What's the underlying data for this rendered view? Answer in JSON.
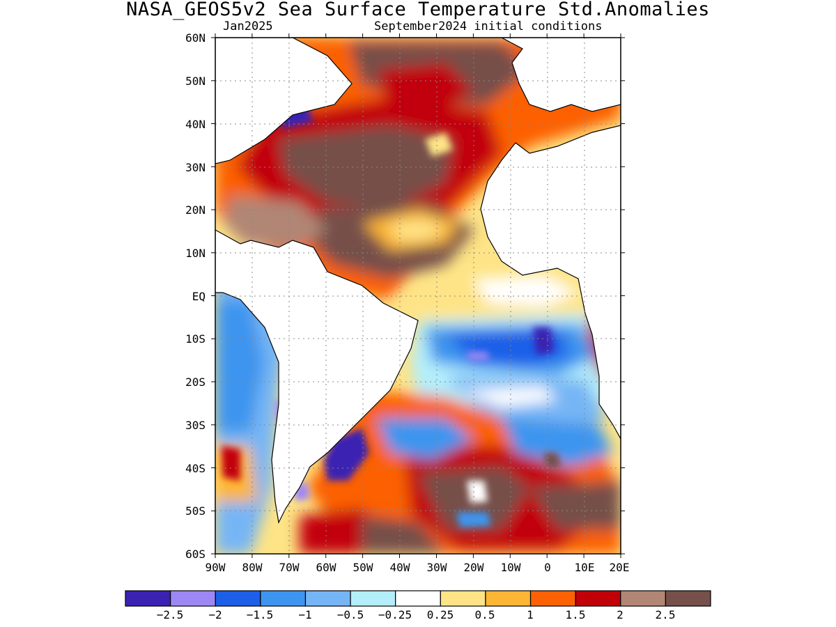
{
  "header": {
    "title": "NASA_GEOS5v2 Sea Surface Temperature Std.Anomalies",
    "subtitle_left": "Jan2025",
    "subtitle_right": "September2024 initial conditions"
  },
  "axes": {
    "lat_labels": [
      "60N",
      "50N",
      "40N",
      "30N",
      "20N",
      "10N",
      "EQ",
      "10S",
      "20S",
      "30S",
      "40S",
      "50S",
      "60S"
    ],
    "lon_labels": [
      "90W",
      "80W",
      "70W",
      "60W",
      "50W",
      "40W",
      "30W",
      "20W",
      "10W",
      "0",
      "10E",
      "20E"
    ],
    "lat_range": [
      -60,
      60
    ],
    "lon_range": [
      -90,
      20
    ],
    "grid": "dotted"
  },
  "colorbar": {
    "colors": [
      "#3b22b3",
      "#9d87f5",
      "#1d5fe8",
      "#3d95ef",
      "#76b5f5",
      "#b4eefb",
      "#ffffff",
      "#fee486",
      "#fdb534",
      "#fc6104",
      "#c20007",
      "#b18674",
      "#76504a"
    ],
    "labels": [
      "-2.5",
      "-2",
      "-1.5",
      "-1",
      "-0.5",
      "-0.25",
      "0.25",
      "0.5",
      "1",
      "1.5",
      "2",
      "2.5"
    ],
    "land_color": "#ffffff"
  },
  "chart_data": {
    "type": "heatmap",
    "title": "NASA_GEOS5v2 Sea Surface Temperature Std.Anomalies",
    "variable": "Sea Surface Temperature Std.Anomalies",
    "valid": "Jan2025",
    "initial_conditions": "September2024",
    "lon_range": [
      -90,
      20
    ],
    "lat_range": [
      -60,
      60
    ],
    "levels": [
      -2.5,
      -2,
      -1.5,
      -1,
      -0.5,
      -0.25,
      0.25,
      0.5,
      1,
      1.5,
      2,
      2.5
    ],
    "regions": [
      {
        "lon": [
          -60,
          -10
        ],
        "lat": [
          15,
          35
        ],
        "value": 2.5
      },
      {
        "lon": [
          -65,
          -20
        ],
        "lat": [
          0,
          15
        ],
        "value": 2.3
      },
      {
        "lon": [
          -50,
          -10
        ],
        "lat": [
          40,
          60
        ],
        "value": 2.0
      },
      {
        "lon": [
          -40,
          5
        ],
        "lat": [
          -18,
          -8
        ],
        "value": -1.2
      },
      {
        "lon": [
          -5,
          0
        ],
        "lat": [
          -14,
          -8
        ],
        "value": -2.2
      },
      {
        "lon": [
          -30,
          15
        ],
        "lat": [
          -25,
          -18
        ],
        "value": -0.6
      },
      {
        "lon": [
          -30,
          10
        ],
        "lat": [
          -60,
          -35
        ],
        "value": 2.0
      },
      {
        "lon": [
          -53,
          -46
        ],
        "lat": [
          -42,
          -35
        ],
        "value": -2.5
      },
      {
        "lon": [
          -90,
          -75
        ],
        "lat": [
          -30,
          5
        ],
        "value": -0.8
      },
      {
        "lon": [
          -20,
          5
        ],
        "lat": [
          -5,
          8
        ],
        "value": 0.5
      }
    ]
  }
}
